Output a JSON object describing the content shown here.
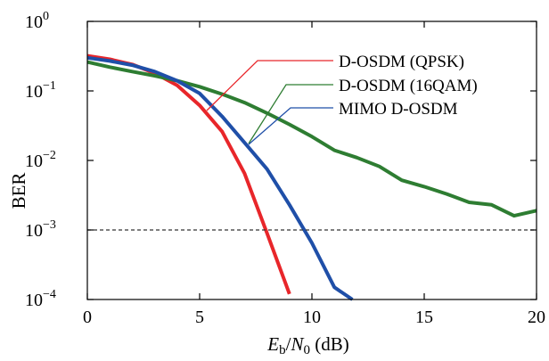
{
  "chart_data": {
    "type": "line",
    "title": "",
    "xlabel": {
      "var_e": "E",
      "var_e_sub": "b",
      "slash": "/",
      "var_n": "N",
      "var_n_sub": "0",
      "unit": " (dB)"
    },
    "ylabel": "BER",
    "xlim": [
      0,
      20
    ],
    "ylim": [
      0.0001,
      1
    ],
    "y_scale": "log",
    "grid": false,
    "x_ticks": [
      {
        "value": 0,
        "label": "0"
      },
      {
        "value": 5,
        "label": "5"
      },
      {
        "value": 10,
        "label": "10"
      },
      {
        "value": 15,
        "label": "15"
      },
      {
        "value": 20,
        "label": "20"
      }
    ],
    "y_ticks": [
      {
        "value": 1,
        "base": "10",
        "exp": "0"
      },
      {
        "value": 0.1,
        "base": "10",
        "exp": "−1"
      },
      {
        "value": 0.01,
        "base": "10",
        "exp": "−2"
      },
      {
        "value": 0.001,
        "base": "10",
        "exp": "−3"
      },
      {
        "value": 0.0001,
        "base": "10",
        "exp": "−4"
      }
    ],
    "reference_line": {
      "y": 0.001,
      "style": "dashed",
      "color": "#333333"
    },
    "series": [
      {
        "name": "D-OSDM (QPSK)",
        "color": "#e8262a",
        "x": [
          0,
          1,
          2,
          3,
          4,
          5,
          6,
          7,
          8,
          9
        ],
        "y": [
          0.32,
          0.285,
          0.24,
          0.18,
          0.12,
          0.062,
          0.026,
          0.0065,
          0.0009,
          0.00012
        ]
      },
      {
        "name": "D-OSDM (16QAM)",
        "color": "#2e7d32",
        "x": [
          0,
          1,
          2,
          3,
          4,
          5,
          6,
          7,
          8,
          9,
          10,
          11,
          12,
          13,
          14,
          15,
          16,
          17,
          18,
          19,
          20
        ],
        "y": [
          0.26,
          0.22,
          0.19,
          0.165,
          0.14,
          0.115,
          0.09,
          0.068,
          0.048,
          0.033,
          0.022,
          0.014,
          0.011,
          0.0082,
          0.0052,
          0.0042,
          0.0033,
          0.0025,
          0.0023,
          0.0016,
          0.0019
        ]
      },
      {
        "name": "MIMO D-OSDM",
        "color": "#1f4fa8",
        "x": [
          0,
          1,
          2,
          3,
          4,
          5,
          6,
          7,
          8,
          9,
          10,
          11,
          11.8
        ],
        "y": [
          0.3,
          0.27,
          0.235,
          0.19,
          0.14,
          0.092,
          0.043,
          0.018,
          0.0075,
          0.0023,
          0.00065,
          0.00015,
          0.0001
        ]
      }
    ],
    "legend": {
      "placement": "top-right",
      "style": "leader-lines"
    }
  }
}
